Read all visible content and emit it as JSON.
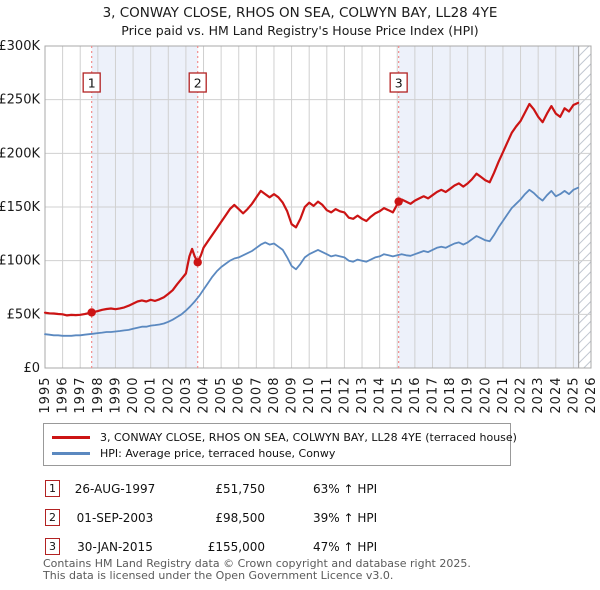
{
  "title": "3, CONWAY CLOSE, RHOS ON SEA, COLWYN BAY, LL28 4YE",
  "subtitle": "Price paid vs. HM Land Registry's House Price Index (HPI)",
  "chart_data": {
    "type": "line",
    "legend_position": "bottom",
    "x_axis": {
      "min": 1995,
      "max": 2026,
      "ticks": [
        1995,
        1996,
        1997,
        1998,
        1999,
        2000,
        2001,
        2002,
        2003,
        2004,
        2005,
        2006,
        2007,
        2008,
        2009,
        2010,
        2011,
        2012,
        2013,
        2014,
        2015,
        2016,
        2017,
        2018,
        2019,
        2020,
        2021,
        2022,
        2023,
        2024,
        2025,
        2026
      ]
    },
    "y_axis": {
      "min": 0,
      "max": 300000,
      "ticks": [
        0,
        50000,
        100000,
        150000,
        200000,
        250000,
        300000
      ],
      "tick_labels": [
        "£0",
        "£50K",
        "£100K",
        "£150K",
        "£200K",
        "£250K",
        "£300K"
      ],
      "gridlines": true
    },
    "series": [
      {
        "name": "3, CONWAY CLOSE, RHOS ON SEA, COLWYN BAY, LL28 4YE (terraced house)",
        "color": "#cc1414",
        "width": 2.2,
        "points": [
          [
            1995.0,
            51500
          ],
          [
            1995.25,
            51000
          ],
          [
            1995.5,
            50800
          ],
          [
            1995.75,
            50300
          ],
          [
            1996.0,
            50000
          ],
          [
            1996.25,
            49000
          ],
          [
            1996.5,
            49500
          ],
          [
            1996.75,
            49300
          ],
          [
            1997.0,
            49600
          ],
          [
            1997.25,
            50200
          ],
          [
            1997.65,
            51750
          ],
          [
            1998.0,
            53000
          ],
          [
            1998.25,
            54200
          ],
          [
            1998.5,
            55000
          ],
          [
            1998.75,
            55400
          ],
          [
            1999.0,
            54800
          ],
          [
            1999.25,
            55500
          ],
          [
            1999.5,
            56500
          ],
          [
            1999.75,
            58000
          ],
          [
            2000.0,
            60000
          ],
          [
            2000.25,
            62000
          ],
          [
            2000.5,
            63000
          ],
          [
            2000.75,
            62000
          ],
          [
            2001.0,
            63500
          ],
          [
            2001.25,
            62500
          ],
          [
            2001.5,
            64000
          ],
          [
            2001.75,
            66000
          ],
          [
            2002.0,
            69000
          ],
          [
            2002.25,
            72500
          ],
          [
            2002.5,
            78000
          ],
          [
            2002.75,
            83000
          ],
          [
            2003.0,
            88000
          ],
          [
            2003.2,
            104000
          ],
          [
            2003.35,
            111000
          ],
          [
            2003.5,
            104000
          ],
          [
            2003.67,
            98500
          ],
          [
            2003.85,
            105000
          ],
          [
            2004.0,
            112000
          ],
          [
            2004.25,
            118000
          ],
          [
            2004.5,
            124000
          ],
          [
            2004.75,
            130000
          ],
          [
            2005.0,
            136000
          ],
          [
            2005.25,
            142000
          ],
          [
            2005.5,
            148000
          ],
          [
            2005.75,
            152000
          ],
          [
            2006.0,
            148000
          ],
          [
            2006.25,
            144000
          ],
          [
            2006.5,
            148000
          ],
          [
            2006.75,
            153000
          ],
          [
            2007.0,
            159000
          ],
          [
            2007.25,
            165000
          ],
          [
            2007.5,
            162000
          ],
          [
            2007.75,
            159000
          ],
          [
            2008.0,
            162000
          ],
          [
            2008.25,
            159000
          ],
          [
            2008.5,
            154000
          ],
          [
            2008.75,
            146000
          ],
          [
            2009.0,
            134000
          ],
          [
            2009.25,
            131000
          ],
          [
            2009.5,
            139000
          ],
          [
            2009.75,
            150000
          ],
          [
            2010.0,
            154000
          ],
          [
            2010.25,
            151000
          ],
          [
            2010.5,
            155000
          ],
          [
            2010.75,
            152000
          ],
          [
            2011.0,
            147000
          ],
          [
            2011.25,
            145000
          ],
          [
            2011.5,
            148000
          ],
          [
            2011.75,
            146000
          ],
          [
            2012.0,
            145000
          ],
          [
            2012.25,
            140000
          ],
          [
            2012.5,
            139000
          ],
          [
            2012.75,
            142000
          ],
          [
            2013.0,
            139000
          ],
          [
            2013.25,
            137000
          ],
          [
            2013.5,
            141000
          ],
          [
            2013.75,
            144000
          ],
          [
            2014.0,
            146000
          ],
          [
            2014.25,
            149000
          ],
          [
            2014.5,
            147000
          ],
          [
            2014.75,
            145000
          ],
          [
            2015.08,
            155000
          ],
          [
            2015.25,
            157000
          ],
          [
            2015.5,
            155000
          ],
          [
            2015.75,
            153000
          ],
          [
            2016.0,
            156000
          ],
          [
            2016.25,
            158000
          ],
          [
            2016.5,
            160000
          ],
          [
            2016.75,
            158000
          ],
          [
            2017.0,
            161000
          ],
          [
            2017.25,
            164000
          ],
          [
            2017.5,
            166000
          ],
          [
            2017.75,
            164000
          ],
          [
            2018.0,
            167000
          ],
          [
            2018.25,
            170000
          ],
          [
            2018.5,
            172000
          ],
          [
            2018.75,
            169000
          ],
          [
            2019.0,
            172000
          ],
          [
            2019.25,
            176000
          ],
          [
            2019.5,
            181000
          ],
          [
            2019.75,
            178000
          ],
          [
            2020.0,
            175000
          ],
          [
            2020.25,
            173000
          ],
          [
            2020.5,
            182000
          ],
          [
            2020.75,
            192000
          ],
          [
            2021.0,
            201000
          ],
          [
            2021.25,
            210000
          ],
          [
            2021.5,
            219000
          ],
          [
            2021.75,
            225000
          ],
          [
            2022.0,
            230000
          ],
          [
            2022.25,
            238000
          ],
          [
            2022.5,
            246000
          ],
          [
            2022.75,
            241000
          ],
          [
            2023.0,
            234000
          ],
          [
            2023.25,
            229000
          ],
          [
            2023.5,
            237000
          ],
          [
            2023.75,
            244000
          ],
          [
            2024.0,
            237000
          ],
          [
            2024.25,
            234000
          ],
          [
            2024.5,
            242000
          ],
          [
            2024.75,
            239000
          ],
          [
            2025.0,
            245000
          ],
          [
            2025.27,
            247000
          ]
        ]
      },
      {
        "name": "HPI: Average price, terraced house, Conwy",
        "color": "#5b89c0",
        "width": 1.8,
        "points": [
          [
            1995.0,
            31500
          ],
          [
            1995.25,
            31000
          ],
          [
            1995.5,
            30500
          ],
          [
            1995.75,
            30500
          ],
          [
            1996.0,
            30000
          ],
          [
            1996.25,
            30000
          ],
          [
            1996.5,
            30000
          ],
          [
            1996.75,
            30500
          ],
          [
            1997.0,
            30500
          ],
          [
            1997.25,
            31000
          ],
          [
            1997.5,
            31500
          ],
          [
            1997.75,
            32000
          ],
          [
            1998.0,
            32500
          ],
          [
            1998.25,
            33000
          ],
          [
            1998.5,
            33500
          ],
          [
            1998.75,
            33500
          ],
          [
            1999.0,
            34000
          ],
          [
            1999.25,
            34500
          ],
          [
            1999.5,
            35000
          ],
          [
            1999.75,
            35500
          ],
          [
            2000.0,
            36500
          ],
          [
            2000.25,
            37500
          ],
          [
            2000.5,
            38500
          ],
          [
            2000.75,
            38500
          ],
          [
            2001.0,
            39500
          ],
          [
            2001.25,
            40000
          ],
          [
            2001.5,
            40500
          ],
          [
            2001.75,
            41500
          ],
          [
            2002.0,
            43000
          ],
          [
            2002.25,
            45000
          ],
          [
            2002.5,
            47500
          ],
          [
            2002.75,
            50000
          ],
          [
            2003.0,
            53500
          ],
          [
            2003.25,
            57500
          ],
          [
            2003.5,
            62000
          ],
          [
            2003.75,
            67000
          ],
          [
            2004.0,
            73000
          ],
          [
            2004.25,
            79000
          ],
          [
            2004.5,
            85000
          ],
          [
            2004.75,
            90000
          ],
          [
            2005.0,
            94000
          ],
          [
            2005.25,
            97000
          ],
          [
            2005.5,
            100000
          ],
          [
            2005.75,
            102000
          ],
          [
            2006.0,
            103000
          ],
          [
            2006.25,
            105000
          ],
          [
            2006.5,
            107000
          ],
          [
            2006.75,
            109000
          ],
          [
            2007.0,
            112000
          ],
          [
            2007.25,
            115000
          ],
          [
            2007.5,
            117000
          ],
          [
            2007.75,
            115000
          ],
          [
            2008.0,
            116000
          ],
          [
            2008.25,
            113000
          ],
          [
            2008.5,
            110000
          ],
          [
            2008.75,
            103000
          ],
          [
            2009.0,
            95000
          ],
          [
            2009.25,
            92000
          ],
          [
            2009.5,
            97000
          ],
          [
            2009.75,
            103000
          ],
          [
            2010.0,
            106000
          ],
          [
            2010.25,
            108000
          ],
          [
            2010.5,
            110000
          ],
          [
            2010.75,
            108000
          ],
          [
            2011.0,
            106000
          ],
          [
            2011.25,
            104000
          ],
          [
            2011.5,
            105000
          ],
          [
            2011.75,
            104000
          ],
          [
            2012.0,
            103000
          ],
          [
            2012.25,
            100000
          ],
          [
            2012.5,
            99000
          ],
          [
            2012.75,
            101000
          ],
          [
            2013.0,
            100000
          ],
          [
            2013.25,
            99000
          ],
          [
            2013.5,
            101000
          ],
          [
            2013.75,
            103000
          ],
          [
            2014.0,
            104000
          ],
          [
            2014.25,
            106000
          ],
          [
            2014.5,
            105000
          ],
          [
            2014.75,
            104000
          ],
          [
            2015.0,
            105000
          ],
          [
            2015.25,
            106000
          ],
          [
            2015.5,
            105000
          ],
          [
            2015.75,
            104500
          ],
          [
            2016.0,
            106000
          ],
          [
            2016.25,
            107500
          ],
          [
            2016.5,
            109000
          ],
          [
            2016.75,
            108000
          ],
          [
            2017.0,
            110000
          ],
          [
            2017.25,
            112000
          ],
          [
            2017.5,
            113000
          ],
          [
            2017.75,
            112000
          ],
          [
            2018.0,
            114000
          ],
          [
            2018.25,
            116000
          ],
          [
            2018.5,
            117000
          ],
          [
            2018.75,
            115000
          ],
          [
            2019.0,
            117000
          ],
          [
            2019.25,
            120000
          ],
          [
            2019.5,
            123000
          ],
          [
            2019.75,
            121000
          ],
          [
            2020.0,
            119000
          ],
          [
            2020.25,
            118000
          ],
          [
            2020.5,
            124000
          ],
          [
            2020.75,
            131000
          ],
          [
            2021.0,
            137000
          ],
          [
            2021.25,
            143000
          ],
          [
            2021.5,
            149000
          ],
          [
            2021.75,
            153000
          ],
          [
            2022.0,
            157000
          ],
          [
            2022.25,
            162000
          ],
          [
            2022.5,
            166000
          ],
          [
            2022.75,
            163000
          ],
          [
            2023.0,
            159000
          ],
          [
            2023.25,
            156000
          ],
          [
            2023.5,
            161000
          ],
          [
            2023.75,
            165000
          ],
          [
            2024.0,
            160000
          ],
          [
            2024.25,
            162000
          ],
          [
            2024.5,
            165000
          ],
          [
            2024.75,
            162000
          ],
          [
            2025.0,
            166000
          ],
          [
            2025.27,
            168000
          ]
        ]
      }
    ],
    "sales": [
      {
        "n": "1",
        "x": 1997.65,
        "value": 51750
      },
      {
        "n": "2",
        "x": 2003.67,
        "value": 98500
      },
      {
        "n": "3",
        "x": 2015.08,
        "value": 155000
      }
    ],
    "shaded_bands": [
      [
        1997.65,
        2003.67
      ],
      [
        2015.08,
        2025.3
      ]
    ],
    "future_hatch_band": [
      2025.3,
      2026
    ],
    "colors": {
      "property_line": "#cc1414",
      "hpi_line": "#5b89c0",
      "sale_dash": "#f28d8d",
      "band_fill": "#edf1fa",
      "grid": "#d0d0d0",
      "border": "#a8a8a8",
      "hatch": "#c0c6d0",
      "marker": "#cc1414",
      "badge_border": "#b22222",
      "tick_text": "#1a1a1a"
    }
  },
  "legend": {
    "items": [
      {
        "label": "3, CONWAY CLOSE, RHOS ON SEA, COLWYN BAY, LL28 4YE (terraced house)",
        "color": "#cc1414"
      },
      {
        "label": "HPI: Average price, terraced house, Conwy",
        "color": "#5b89c0"
      }
    ]
  },
  "table": {
    "rows": [
      {
        "n": "1",
        "date": "26-AUG-1997",
        "price": "£51,750",
        "hpi_change": "63% ↑ HPI"
      },
      {
        "n": "2",
        "date": "01-SEP-2003",
        "price": "£98,500",
        "hpi_change": "39% ↑ HPI"
      },
      {
        "n": "3",
        "date": "30-JAN-2015",
        "price": "£155,000",
        "hpi_change": "47% ↑ HPI"
      }
    ]
  },
  "footer": {
    "line1": "Contains HM Land Registry data © Crown copyright and database right 2025.",
    "line2": "This data is licensed under the Open Government Licence v3.0."
  }
}
